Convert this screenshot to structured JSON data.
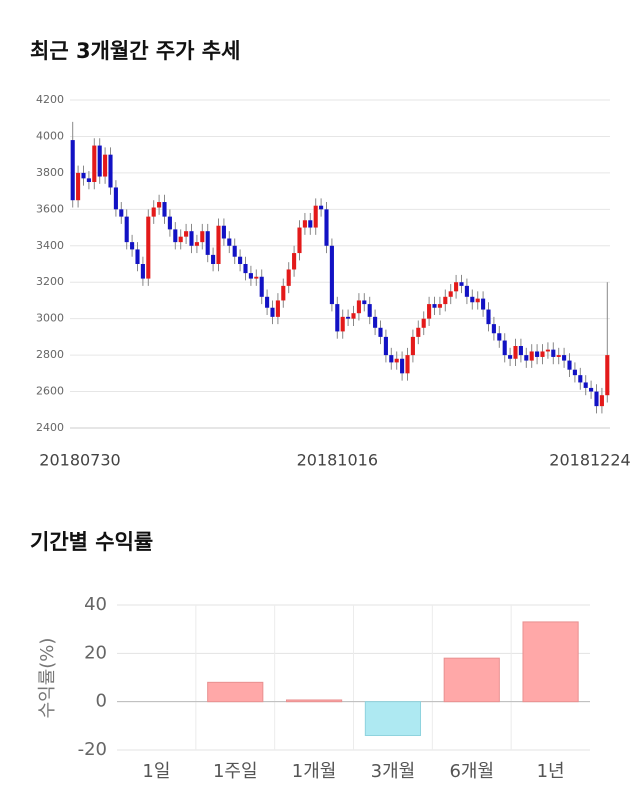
{
  "chart_data": [
    {
      "type": "candlestick",
      "title": "최근 3개월간 주가 추세",
      "categories": [
        "20180730",
        null,
        null,
        null,
        null,
        null,
        null,
        null,
        null,
        null,
        null,
        null,
        null,
        null,
        null,
        null,
        null,
        null,
        null,
        null,
        null,
        null,
        null,
        null,
        null,
        null,
        null,
        null,
        null,
        null,
        null,
        null,
        null,
        null,
        null,
        null,
        null,
        null,
        null,
        null,
        null,
        null,
        null,
        null,
        null,
        null,
        null,
        null,
        null,
        "20181016",
        null,
        null,
        null,
        null,
        null,
        null,
        null,
        null,
        null,
        null,
        null,
        null,
        null,
        null,
        null,
        null,
        null,
        null,
        null,
        null,
        null,
        null,
        null,
        null,
        null,
        null,
        null,
        null,
        null,
        null,
        null,
        null,
        null,
        null,
        null,
        null,
        null,
        null,
        null,
        null,
        null,
        null,
        null,
        null,
        null,
        null,
        null,
        null,
        null,
        "20181224"
      ],
      "open": [
        3980,
        3650,
        3800,
        3770,
        3750,
        3950,
        3780,
        3900,
        3720,
        3600,
        3560,
        3420,
        3380,
        3300,
        3220,
        3560,
        3610,
        3640,
        3560,
        3490,
        3420,
        3450,
        3480,
        3400,
        3420,
        3480,
        3350,
        3300,
        3510,
        3440,
        3400,
        3340,
        3300,
        3250,
        3220,
        3230,
        3120,
        3060,
        3010,
        3100,
        3180,
        3270,
        3360,
        3500,
        3540,
        3500,
        3620,
        3600,
        3400,
        3080,
        2930,
        3010,
        3000,
        3030,
        3100,
        3080,
        3010,
        2950,
        2900,
        2800,
        2760,
        2780,
        2700,
        2800,
        2900,
        2950,
        3000,
        3080,
        3060,
        3080,
        3120,
        3150,
        3200,
        3180,
        3120,
        3090,
        3110,
        3050,
        2970,
        2920,
        2880,
        2800,
        2780,
        2850,
        2800,
        2770,
        2820,
        2790,
        2820,
        2830,
        2790,
        2800,
        2770,
        2720,
        2690,
        2650,
        2620,
        2600,
        2520,
        2580
      ],
      "high": [
        4080,
        3840,
        3840,
        3810,
        3990,
        3990,
        3940,
        3940,
        3760,
        3640,
        3600,
        3460,
        3420,
        3340,
        3600,
        3650,
        3680,
        3680,
        3600,
        3530,
        3490,
        3520,
        3520,
        3460,
        3520,
        3520,
        3390,
        3550,
        3550,
        3480,
        3440,
        3380,
        3340,
        3290,
        3270,
        3270,
        3160,
        3100,
        3140,
        3220,
        3310,
        3400,
        3540,
        3580,
        3580,
        3660,
        3660,
        3640,
        3440,
        3120,
        3050,
        3050,
        3070,
        3140,
        3140,
        3120,
        3050,
        2990,
        2940,
        2840,
        2820,
        2820,
        2840,
        2940,
        2990,
        3040,
        3120,
        3120,
        3120,
        3160,
        3190,
        3240,
        3240,
        3220,
        3160,
        3150,
        3150,
        3090,
        3010,
        2960,
        2920,
        2840,
        2890,
        2890,
        2840,
        2860,
        2860,
        2860,
        2870,
        2870,
        2840,
        2840,
        2810,
        2760,
        2730,
        2690,
        2660,
        2640,
        2620,
        3200
      ],
      "low": [
        3610,
        3610,
        3730,
        3710,
        3710,
        3740,
        3740,
        3680,
        3560,
        3520,
        3380,
        3340,
        3260,
        3180,
        3180,
        3520,
        3570,
        3520,
        3450,
        3380,
        3380,
        3410,
        3360,
        3360,
        3380,
        3310,
        3260,
        3260,
        3400,
        3360,
        3300,
        3260,
        3210,
        3180,
        3180,
        3080,
        3020,
        2970,
        2970,
        3060,
        3140,
        3230,
        3320,
        3460,
        3460,
        3460,
        3560,
        3360,
        3040,
        2890,
        2890,
        2960,
        2960,
        2990,
        3040,
        2970,
        2910,
        2860,
        2760,
        2720,
        2720,
        2660,
        2660,
        2760,
        2860,
        2910,
        2960,
        3020,
        3020,
        3040,
        3080,
        3110,
        3140,
        3080,
        3050,
        3050,
        3010,
        2930,
        2880,
        2840,
        2760,
        2740,
        2740,
        2760,
        2730,
        2730,
        2750,
        2750,
        2780,
        2750,
        2750,
        2730,
        2680,
        2650,
        2610,
        2580,
        2560,
        2480,
        2480,
        2540
      ],
      "close": [
        3650,
        3800,
        3770,
        3750,
        3950,
        3780,
        3900,
        3720,
        3600,
        3560,
        3420,
        3380,
        3300,
        3220,
        3560,
        3610,
        3640,
        3560,
        3490,
        3420,
        3450,
        3480,
        3400,
        3420,
        3480,
        3350,
        3300,
        3510,
        3440,
        3400,
        3340,
        3300,
        3250,
        3220,
        3230,
        3120,
        3060,
        3010,
        3100,
        3180,
        3270,
        3360,
        3500,
        3540,
        3500,
        3620,
        3600,
        3400,
        3080,
        2930,
        3010,
        3000,
        3030,
        3100,
        3080,
        3010,
        2950,
        2900,
        2800,
        2760,
        2780,
        2700,
        2800,
        2900,
        2950,
        3000,
        3080,
        3060,
        3080,
        3120,
        3150,
        3200,
        3180,
        3120,
        3090,
        3110,
        3050,
        2970,
        2920,
        2880,
        2800,
        2780,
        2850,
        2800,
        2770,
        2820,
        2790,
        2820,
        2830,
        2790,
        2800,
        2770,
        2720,
        2690,
        2650,
        2620,
        2600,
        2520,
        2580,
        2800
      ],
      "up_color": "#e31a1a",
      "down_color": "#1212c4",
      "ylim": [
        2400,
        4200
      ],
      "yticks": [
        2400,
        2600,
        2800,
        3000,
        3200,
        3400,
        3600,
        3800,
        4000,
        4200
      ],
      "grid": true
    },
    {
      "type": "bar",
      "title": "기간별 수익률",
      "ylabel": "수익률(%)",
      "categories": [
        "1일",
        "1주일",
        "1개월",
        "3개월",
        "6개월",
        "1년"
      ],
      "values": [
        0,
        8,
        0.7,
        -14,
        18,
        33
      ],
      "positive_color": "#ffa8a8",
      "negative_color": "#aee9f2",
      "ylim": [
        -20,
        40
      ],
      "yticks": [
        -20,
        0,
        20,
        40
      ],
      "grid": true
    }
  ]
}
